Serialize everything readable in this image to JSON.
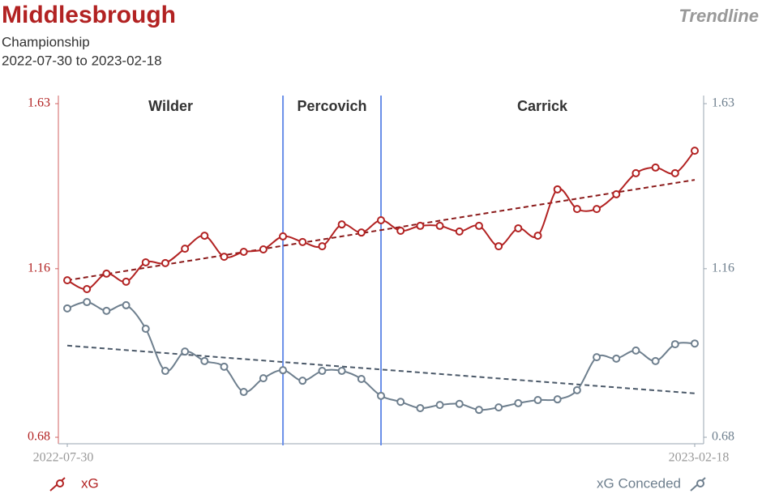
{
  "chart_data": {
    "type": "line",
    "title": "Middlesbrough",
    "subtitle": "Championship",
    "date_range": "2022-07-30 to 2023-02-18",
    "badge": "Trendline",
    "categories": [
      "2022-07-30",
      null,
      null,
      null,
      null,
      null,
      null,
      null,
      null,
      null,
      null,
      null,
      null,
      null,
      null,
      null,
      null,
      null,
      null,
      null,
      null,
      null,
      null,
      null,
      null,
      null,
      null,
      null,
      null,
      null,
      null,
      null,
      "2023-02-18"
    ],
    "ylim": [
      0.68,
      1.63
    ],
    "yticks": [
      0.68,
      1.16,
      1.63
    ],
    "y2lim": [
      0.68,
      1.63
    ],
    "y2ticks": [
      0.68,
      1.16,
      1.63
    ],
    "periods": [
      {
        "name": "Wilder",
        "start": 0,
        "end": 11
      },
      {
        "name": "Percovich",
        "start": 11,
        "end": 16
      },
      {
        "name": "Carrick",
        "start": 16,
        "end": 32
      }
    ],
    "series": [
      {
        "name": "xG",
        "color": "#b22222",
        "trend": [
          1.127,
          1.413
        ],
        "values": [
          1.127,
          1.102,
          1.146,
          1.123,
          1.178,
          1.176,
          1.217,
          1.254,
          1.194,
          1.208,
          1.215,
          1.252,
          1.236,
          1.224,
          1.286,
          1.263,
          1.298,
          1.268,
          1.282,
          1.282,
          1.266,
          1.282,
          1.224,
          1.275,
          1.254,
          1.386,
          1.33,
          1.33,
          1.372,
          1.432,
          1.448,
          1.432,
          1.496
        ]
      },
      {
        "name": "xG Conceded",
        "color": "#6e7f8e",
        "axis": "y2",
        "trend": [
          0.941,
          0.805
        ],
        "values": [
          1.047,
          1.065,
          1.04,
          1.056,
          0.989,
          0.869,
          0.924,
          0.897,
          0.881,
          0.809,
          0.848,
          0.871,
          0.841,
          0.869,
          0.869,
          0.846,
          0.798,
          0.781,
          0.763,
          0.772,
          0.775,
          0.758,
          0.765,
          0.777,
          0.786,
          0.788,
          0.814,
          0.908,
          0.904,
          0.927,
          0.897,
          0.945,
          0.947
        ]
      }
    ]
  }
}
